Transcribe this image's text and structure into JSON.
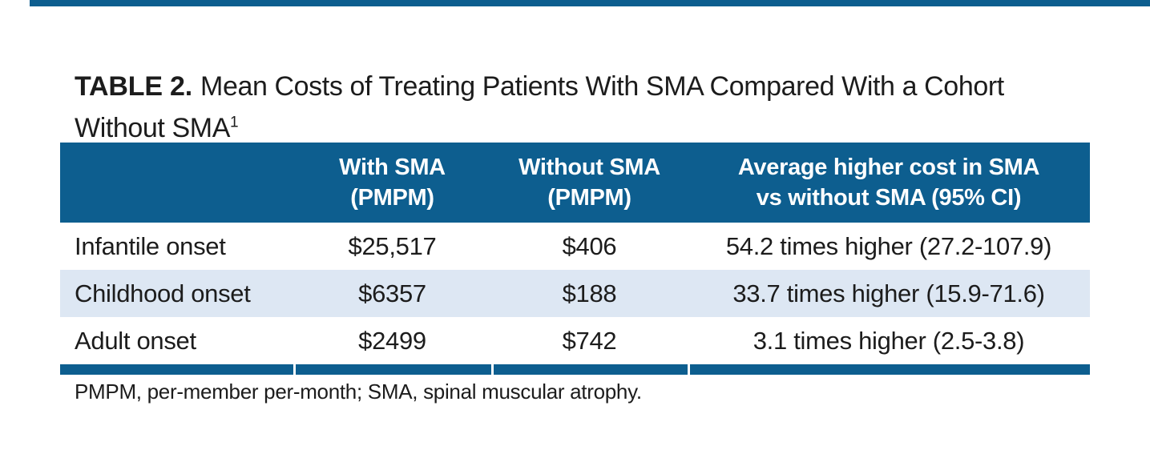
{
  "title": {
    "label": "TABLE 2.",
    "line1_rest": "Mean Costs of Treating Patients With SMA Compared With a Cohort",
    "line2": "Without SMA",
    "superscript": "1"
  },
  "table": {
    "header": {
      "col2": {
        "line1": "With SMA",
        "line2": "(PMPM)"
      },
      "col3": {
        "line1": "Without SMA",
        "line2": "(PMPM)"
      },
      "col4": {
        "line1": "Average higher cost in SMA",
        "line2": "vs without SMA (95% CI)"
      }
    },
    "rows": [
      {
        "label": "Infantile onset",
        "with_sma": "$25,517",
        "without_sma": "$406",
        "ratio": "54.2 times higher (27.2-107.9)"
      },
      {
        "label": "Childhood onset",
        "with_sma": "$6357",
        "without_sma": "$188",
        "ratio": "33.7 times higher (15.9-71.6)"
      },
      {
        "label": "Adult onset",
        "with_sma": "$2499",
        "without_sma": "$742",
        "ratio": "3.1 times higher (2.5-3.8)"
      }
    ]
  },
  "footnote": "PMPM, per-member per-month; SMA, spinal muscular atrophy.",
  "colors": {
    "accent_blue": "#0d5e8f",
    "row_stripe_blue": "#dde7f3",
    "text": "#1c1c1c",
    "header_text": "#ffffff"
  },
  "chart_data": {
    "type": "table",
    "title": "TABLE 2. Mean Costs of Treating Patients With SMA Compared With a Cohort Without SMA",
    "columns": [
      "",
      "With SMA (PMPM)",
      "Without SMA (PMPM)",
      "Average higher cost in SMA vs without SMA (95% CI)"
    ],
    "rows": [
      [
        "Infantile onset",
        "$25,517",
        "$406",
        "54.2 times higher (27.2-107.9)"
      ],
      [
        "Childhood onset",
        "$6357",
        "$188",
        "33.7 times higher (15.9-71.6)"
      ],
      [
        "Adult onset",
        "$2499",
        "$742",
        "3.1 times higher (2.5-3.8)"
      ]
    ],
    "footnote": "PMPM, per-member per-month; SMA, spinal muscular atrophy."
  }
}
